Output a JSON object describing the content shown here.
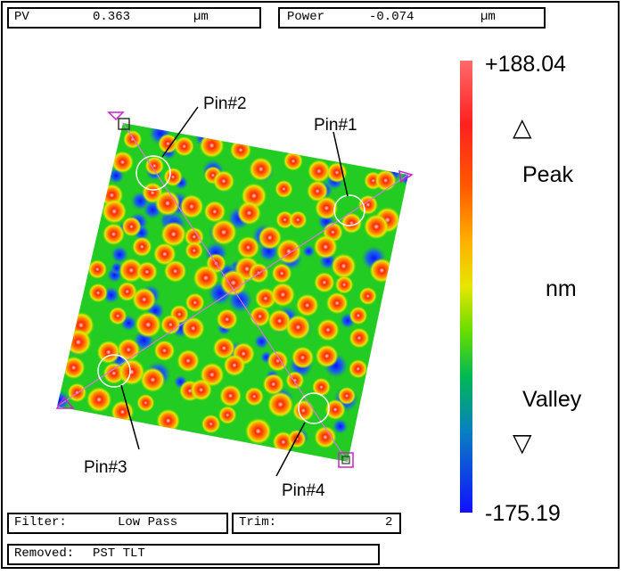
{
  "pv": {
    "label": "PV",
    "value": "0.363",
    "unit": "µm"
  },
  "power": {
    "label": "Power",
    "value": "-0.074",
    "unit": "µm"
  },
  "colorbar": {
    "max": "+188.04",
    "min": "-175.19",
    "peak": "Peak",
    "valley": "Valley",
    "unit": "nm",
    "up_glyph": "△",
    "down_glyph": "▽"
  },
  "pins": {
    "pin1": "Pin#1",
    "pin2": "Pin#2",
    "pin3": "Pin#3",
    "pin4": "Pin#4"
  },
  "filter": {
    "label": "Filter:",
    "value": "Low Pass"
  },
  "trim": {
    "label": "Trim:",
    "value": "2"
  },
  "removed": {
    "label": "Removed:",
    "value": "PST TLT"
  },
  "colors": {
    "frame": "#000000",
    "max_color": "#ff6a6a",
    "min_color": "#1010ff",
    "guide_line": "#d67ad6"
  }
}
